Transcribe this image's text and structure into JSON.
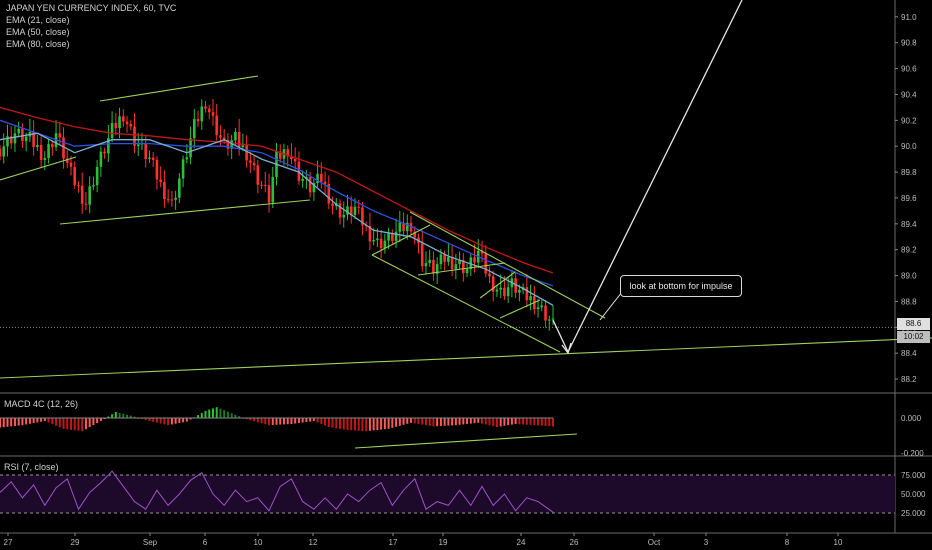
{
  "header": {
    "title": "JAPAN YEN CURRENCY INDEX, 60, TVC",
    "indicators": [
      "EMA (21, close)",
      "EMA (50, close)",
      "EMA (80, close)"
    ]
  },
  "macd_label": "MACD 4C (12, 26)",
  "rsi_label": "RSI (7, close)",
  "annotation": "look at bottom for impulse",
  "last_price": "88.6",
  "countdown": "10:02",
  "colors": {
    "up": "#2bbf39",
    "down": "#ff3030",
    "ema21": "#7ab0cf",
    "ema50": "#2a52e0",
    "ema80": "#c01818",
    "trend": "#9ad25c",
    "rsi": "#a050c8",
    "rsi_bg": "#1d0a2a"
  },
  "chart_data": {
    "type": "candlestick",
    "price_axis": {
      "ticks": [
        91.0,
        90.8,
        90.6,
        90.4,
        90.2,
        90.0,
        89.8,
        89.6,
        89.4,
        89.2,
        89.0,
        88.8,
        88.6,
        88.4,
        88.2
      ],
      "range": [
        88.1,
        91.13
      ]
    },
    "macd_axis": {
      "ticks": [
        "0.000",
        "-0.200"
      ]
    },
    "rsi_axis": {
      "ticks": [
        "75.000",
        "50.000",
        "25.000"
      ]
    },
    "x_labels": [
      "27",
      "29",
      "Sep",
      "6",
      "10",
      "12",
      "17",
      "19",
      "24",
      "26",
      "Oct",
      "3",
      "8",
      "10"
    ],
    "close_path": [
      [
        0,
        89.98
      ],
      [
        4,
        90.1
      ],
      [
        8,
        90.05
      ],
      [
        12,
        89.92
      ],
      [
        15,
        90.1
      ],
      [
        19,
        89.78
      ],
      [
        23,
        89.56
      ],
      [
        26,
        89.84
      ],
      [
        30,
        90.12
      ],
      [
        33,
        90.25
      ],
      [
        36,
        90.05
      ],
      [
        40,
        89.9
      ],
      [
        43,
        89.7
      ],
      [
        46,
        89.55
      ],
      [
        49,
        89.85
      ],
      [
        52,
        90.15
      ],
      [
        55,
        90.35
      ],
      [
        57,
        90.2
      ],
      [
        60,
        90.0
      ],
      [
        63,
        90.05
      ],
      [
        66,
        89.95
      ],
      [
        69,
        89.75
      ],
      [
        72,
        89.6
      ],
      [
        74,
        89.9
      ],
      [
        77,
        89.98
      ],
      [
        80,
        89.78
      ],
      [
        83,
        89.68
      ],
      [
        86,
        89.75
      ],
      [
        89,
        89.55
      ],
      [
        92,
        89.47
      ],
      [
        95,
        89.52
      ],
      [
        98,
        89.36
      ],
      [
        101,
        89.25
      ],
      [
        104,
        89.28
      ],
      [
        107,
        89.35
      ],
      [
        110,
        89.4
      ],
      [
        113,
        89.12
      ],
      [
        116,
        89.05
      ],
      [
        119,
        89.13
      ],
      [
        122,
        89.1
      ],
      [
        125,
        89.05
      ],
      [
        128,
        89.18
      ],
      [
        131,
        88.97
      ],
      [
        134,
        88.87
      ],
      [
        137,
        88.93
      ],
      [
        140,
        88.85
      ],
      [
        143,
        88.8
      ],
      [
        146,
        88.7
      ],
      [
        148,
        88.62
      ]
    ],
    "ema21": [
      [
        0,
        90.05
      ],
      [
        10,
        90.1
      ],
      [
        20,
        89.95
      ],
      [
        30,
        90.05
      ],
      [
        40,
        90.05
      ],
      [
        50,
        89.95
      ],
      [
        60,
        90.05
      ],
      [
        70,
        89.9
      ],
      [
        80,
        89.8
      ],
      [
        90,
        89.55
      ],
      [
        100,
        89.35
      ],
      [
        110,
        89.3
      ],
      [
        120,
        89.15
      ],
      [
        130,
        89.05
      ],
      [
        140,
        88.9
      ],
      [
        148,
        88.77
      ]
    ],
    "ema50": [
      [
        0,
        90.2
      ],
      [
        10,
        90.1
      ],
      [
        20,
        90.0
      ],
      [
        30,
        90.02
      ],
      [
        40,
        90.02
      ],
      [
        50,
        90.0
      ],
      [
        60,
        90.0
      ],
      [
        70,
        89.95
      ],
      [
        80,
        89.82
      ],
      [
        90,
        89.65
      ],
      [
        100,
        89.5
      ],
      [
        110,
        89.38
      ],
      [
        120,
        89.25
      ],
      [
        130,
        89.12
      ],
      [
        140,
        89.0
      ],
      [
        148,
        88.92
      ]
    ],
    "ema80": [
      [
        0,
        90.3
      ],
      [
        10,
        90.22
      ],
      [
        20,
        90.15
      ],
      [
        30,
        90.1
      ],
      [
        40,
        90.08
      ],
      [
        50,
        90.05
      ],
      [
        60,
        90.03
      ],
      [
        70,
        90.0
      ],
      [
        80,
        89.9
      ],
      [
        90,
        89.8
      ],
      [
        100,
        89.65
      ],
      [
        110,
        89.5
      ],
      [
        120,
        89.35
      ],
      [
        130,
        89.22
      ],
      [
        140,
        89.1
      ],
      [
        148,
        89.02
      ]
    ],
    "macd": [
      [
        0,
        -0.16
      ],
      [
        6,
        -0.12
      ],
      [
        12,
        -0.05
      ],
      [
        17,
        -0.18
      ],
      [
        22,
        -0.22
      ],
      [
        27,
        -0.05
      ],
      [
        31,
        0.1
      ],
      [
        35,
        0.04
      ],
      [
        40,
        -0.05
      ],
      [
        45,
        -0.12
      ],
      [
        50,
        -0.06
      ],
      [
        55,
        0.12
      ],
      [
        58,
        0.18
      ],
      [
        62,
        0.08
      ],
      [
        66,
        -0.02
      ],
      [
        72,
        -0.12
      ],
      [
        78,
        -0.1
      ],
      [
        84,
        -0.05
      ],
      [
        88,
        -0.15
      ],
      [
        93,
        -0.2
      ],
      [
        98,
        -0.22
      ],
      [
        104,
        -0.18
      ],
      [
        110,
        -0.08
      ],
      [
        116,
        -0.14
      ],
      [
        122,
        -0.12
      ],
      [
        128,
        -0.08
      ],
      [
        133,
        -0.15
      ],
      [
        138,
        -0.1
      ],
      [
        143,
        -0.12
      ],
      [
        148,
        -0.14
      ]
    ],
    "rsi": [
      [
        0,
        52
      ],
      [
        3,
        66
      ],
      [
        6,
        45
      ],
      [
        9,
        62
      ],
      [
        12,
        35
      ],
      [
        15,
        58
      ],
      [
        18,
        70
      ],
      [
        21,
        30
      ],
      [
        24,
        52
      ],
      [
        27,
        65
      ],
      [
        30,
        80
      ],
      [
        33,
        60
      ],
      [
        36,
        40
      ],
      [
        39,
        30
      ],
      [
        42,
        55
      ],
      [
        45,
        35
      ],
      [
        48,
        50
      ],
      [
        51,
        68
      ],
      [
        54,
        78
      ],
      [
        57,
        50
      ],
      [
        60,
        35
      ],
      [
        63,
        55
      ],
      [
        66,
        40
      ],
      [
        69,
        45
      ],
      [
        72,
        28
      ],
      [
        75,
        60
      ],
      [
        78,
        70
      ],
      [
        81,
        40
      ],
      [
        84,
        30
      ],
      [
        87,
        45
      ],
      [
        90,
        30
      ],
      [
        93,
        50
      ],
      [
        96,
        40
      ],
      [
        99,
        55
      ],
      [
        102,
        65
      ],
      [
        105,
        35
      ],
      [
        108,
        55
      ],
      [
        111,
        70
      ],
      [
        114,
        30
      ],
      [
        117,
        40
      ],
      [
        120,
        35
      ],
      [
        123,
        55
      ],
      [
        126,
        35
      ],
      [
        129,
        60
      ],
      [
        132,
        35
      ],
      [
        135,
        50
      ],
      [
        138,
        28
      ],
      [
        141,
        45
      ],
      [
        144,
        40
      ],
      [
        148,
        26
      ]
    ]
  }
}
